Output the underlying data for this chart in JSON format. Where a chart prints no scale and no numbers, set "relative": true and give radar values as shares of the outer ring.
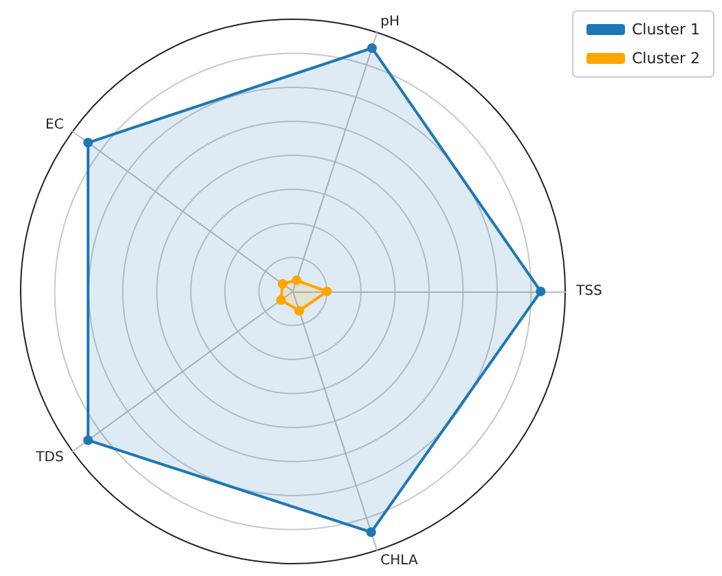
{
  "chart_data": {
    "type": "radar",
    "relative": true,
    "categories": [
      "pH",
      "TSS",
      "CHLA",
      "TDS",
      "EC"
    ],
    "series": [
      {
        "name": "Cluster 1",
        "color": "#1f77b4",
        "values": [
          0.94,
          0.91,
          0.93,
          0.93,
          0.93
        ]
      },
      {
        "name": "Cluster 2",
        "color": "#ffa500",
        "values": [
          0.043,
          0.125,
          0.075,
          0.054,
          0.047
        ]
      }
    ],
    "marker": "circle",
    "line_style": "solid",
    "grid": true,
    "legend": "top right"
  }
}
